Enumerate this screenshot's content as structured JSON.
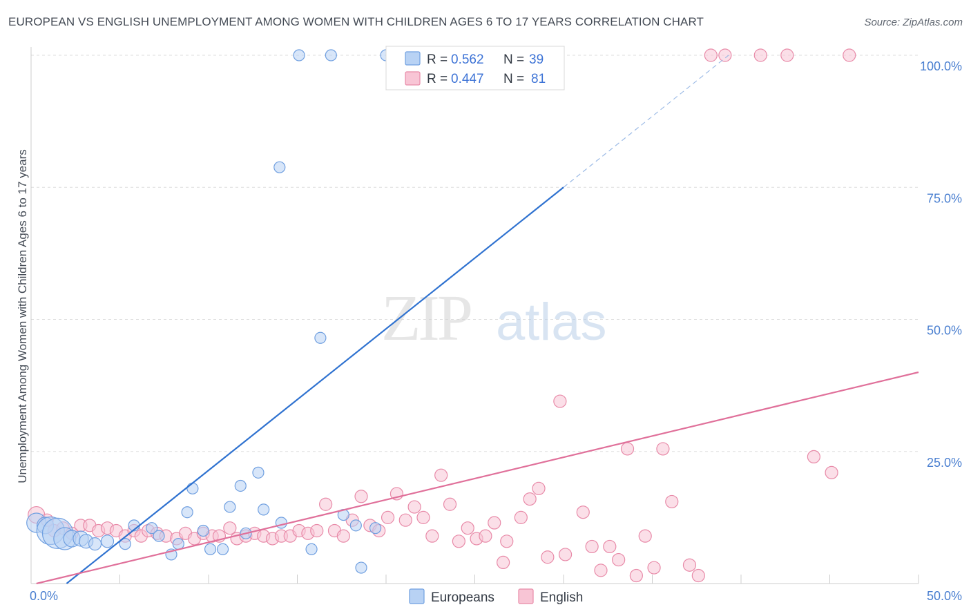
{
  "title": "EUROPEAN VS ENGLISH UNEMPLOYMENT AMONG WOMEN WITH CHILDREN AGES 6 TO 17 YEARS CORRELATION CHART",
  "source": "Source: ZipAtlas.com",
  "watermark": {
    "zip": "ZIP",
    "atlas": "atlas"
  },
  "colors": {
    "europeans_fill": "#b8d2f4",
    "europeans_stroke": "#6f9fe0",
    "europeans_line": "#2f72d0",
    "english_fill": "#f8c5d5",
    "english_stroke": "#e88aa8",
    "english_line": "#e0709a",
    "r_value": "#3d73d6",
    "n_value": "#3d73d6",
    "label": "#333a44",
    "grid": "#dddddd"
  },
  "legend": {
    "europeans": {
      "r_label": "R =",
      "r_value": "0.562",
      "n_label": "N =",
      "n_value": "39"
    },
    "english": {
      "r_label": "R =",
      "r_value": "0.447",
      "n_label": "N =",
      "n_value": "81"
    }
  },
  "chart_data": {
    "type": "scatter",
    "ylabel": "Unemployment Among Women with Children Ages 6 to 17 years",
    "xlabel": "",
    "xlim": [
      0,
      50
    ],
    "ylim": [
      0,
      100
    ],
    "x_ticks": [
      {
        "value": 0,
        "label": "0.0%"
      },
      {
        "value": 50,
        "label": "50.0%"
      }
    ],
    "y_ticks": [
      {
        "value": 25,
        "label": "25.0%"
      },
      {
        "value": 50,
        "label": "50.0%"
      },
      {
        "value": 75,
        "label": "75.0%"
      },
      {
        "value": 100,
        "label": "100.0%"
      }
    ],
    "grid": true,
    "legend_position": "top-center",
    "series": [
      {
        "name": "Europeans",
        "points": [
          [
            0.3,
            11.5,
            14
          ],
          [
            0.8,
            11,
            12
          ],
          [
            1.1,
            10,
            20
          ],
          [
            1.5,
            9.5,
            22
          ],
          [
            1.9,
            8.5,
            16
          ],
          [
            2.3,
            8.5,
            12
          ],
          [
            2.8,
            8.5,
            11
          ],
          [
            3.1,
            8,
            10
          ],
          [
            3.6,
            7.5,
            9
          ],
          [
            4.3,
            8,
            9
          ],
          [
            5.3,
            7.5,
            8
          ],
          [
            5.8,
            11,
            8
          ],
          [
            6.8,
            10.5,
            8
          ],
          [
            7.2,
            9,
            8
          ],
          [
            7.9,
            5.5,
            8
          ],
          [
            8.3,
            7.5,
            8
          ],
          [
            8.8,
            13.5,
            8
          ],
          [
            9.1,
            18,
            8
          ],
          [
            9.7,
            10,
            8
          ],
          [
            10.1,
            6.5,
            8
          ],
          [
            10.8,
            6.5,
            8
          ],
          [
            11.2,
            14.5,
            8
          ],
          [
            11.8,
            18.5,
            8
          ],
          [
            12.1,
            9.5,
            8
          ],
          [
            12.8,
            21,
            8
          ],
          [
            13.1,
            14,
            8
          ],
          [
            14.0,
            78.8,
            8
          ],
          [
            14.1,
            11.5,
            8
          ],
          [
            15.1,
            100,
            8
          ],
          [
            15.8,
            6.5,
            8
          ],
          [
            16.3,
            46.5,
            8
          ],
          [
            16.9,
            100,
            8
          ],
          [
            17.6,
            13,
            8
          ],
          [
            18.3,
            11,
            8
          ],
          [
            18.6,
            3,
            8
          ],
          [
            19.4,
            10.5,
            8
          ],
          [
            20.0,
            100,
            8
          ],
          [
            20.4,
            100,
            8
          ],
          [
            20.8,
            100,
            8
          ]
        ],
        "trend": [
          [
            2.0,
            0
          ],
          [
            30.0,
            75
          ]
        ],
        "trend_extension": [
          [
            30.0,
            75
          ],
          [
            39.3,
            100
          ]
        ]
      },
      {
        "name": "English",
        "points": [
          [
            0.3,
            13,
            12
          ],
          [
            0.9,
            12,
            9
          ],
          [
            1.3,
            10,
            9
          ],
          [
            1.8,
            10.5,
            9
          ],
          [
            2.3,
            9.5,
            9
          ],
          [
            2.8,
            11,
            9
          ],
          [
            3.3,
            11,
            9
          ],
          [
            3.8,
            10,
            9
          ],
          [
            4.3,
            10.5,
            9
          ],
          [
            4.8,
            10,
            9
          ],
          [
            5.3,
            9,
            9
          ],
          [
            5.8,
            10,
            9
          ],
          [
            6.2,
            9,
            9
          ],
          [
            6.6,
            10,
            9
          ],
          [
            7.1,
            9.5,
            9
          ],
          [
            7.6,
            9,
            9
          ],
          [
            8.2,
            8.5,
            9
          ],
          [
            8.7,
            9.5,
            9
          ],
          [
            9.2,
            8.5,
            9
          ],
          [
            9.7,
            9.5,
            9
          ],
          [
            10.2,
            9,
            9
          ],
          [
            10.6,
            9,
            9
          ],
          [
            11.2,
            10.5,
            9
          ],
          [
            11.6,
            8.5,
            9
          ],
          [
            12.1,
            9,
            9
          ],
          [
            12.6,
            9.5,
            9
          ],
          [
            13.1,
            9,
            9
          ],
          [
            13.6,
            8.5,
            9
          ],
          [
            14.1,
            9,
            9
          ],
          [
            14.6,
            9,
            9
          ],
          [
            15.1,
            10,
            9
          ],
          [
            15.6,
            9.5,
            9
          ],
          [
            16.1,
            10,
            9
          ],
          [
            16.6,
            15,
            9
          ],
          [
            17.1,
            10,
            9
          ],
          [
            17.6,
            9,
            9
          ],
          [
            18.1,
            12,
            9
          ],
          [
            18.6,
            16.5,
            9
          ],
          [
            19.1,
            11,
            9
          ],
          [
            19.6,
            10,
            9
          ],
          [
            20.1,
            12.5,
            9
          ],
          [
            20.6,
            17,
            9
          ],
          [
            21.1,
            12,
            9
          ],
          [
            21.6,
            14.5,
            9
          ],
          [
            22.1,
            12.5,
            9
          ],
          [
            22.6,
            9,
            9
          ],
          [
            23.1,
            20.5,
            9
          ],
          [
            23.6,
            15,
            9
          ],
          [
            24.1,
            8,
            9
          ],
          [
            24.6,
            10.5,
            9
          ],
          [
            25.1,
            8.5,
            9
          ],
          [
            25.6,
            9,
            9
          ],
          [
            26.1,
            11.5,
            9
          ],
          [
            26.6,
            4,
            9
          ],
          [
            26.8,
            8,
            9
          ],
          [
            27.6,
            12.5,
            9
          ],
          [
            28.1,
            16,
            9
          ],
          [
            28.6,
            18,
            9
          ],
          [
            29.1,
            5,
            9
          ],
          [
            29.8,
            34.5,
            9
          ],
          [
            30.1,
            5.5,
            9
          ],
          [
            31.1,
            13.5,
            9
          ],
          [
            31.6,
            7,
            9
          ],
          [
            32.1,
            2.5,
            9
          ],
          [
            32.6,
            7,
            9
          ],
          [
            33.1,
            4.5,
            9
          ],
          [
            33.6,
            25.5,
            9
          ],
          [
            34.1,
            1.5,
            9
          ],
          [
            34.6,
            9,
            9
          ],
          [
            35.1,
            3,
            9
          ],
          [
            35.6,
            25.5,
            9
          ],
          [
            36.1,
            15.5,
            9
          ],
          [
            37.1,
            3.5,
            9
          ],
          [
            37.6,
            1.5,
            9
          ],
          [
            38.3,
            100,
            9
          ],
          [
            39.1,
            100,
            9
          ],
          [
            41.1,
            100,
            9
          ],
          [
            42.6,
            100,
            9
          ],
          [
            44.1,
            24,
            9
          ],
          [
            45.1,
            21,
            9
          ],
          [
            46.1,
            100,
            9
          ]
        ],
        "trend": [
          [
            0.3,
            0
          ],
          [
            50,
            40
          ]
        ]
      }
    ]
  }
}
